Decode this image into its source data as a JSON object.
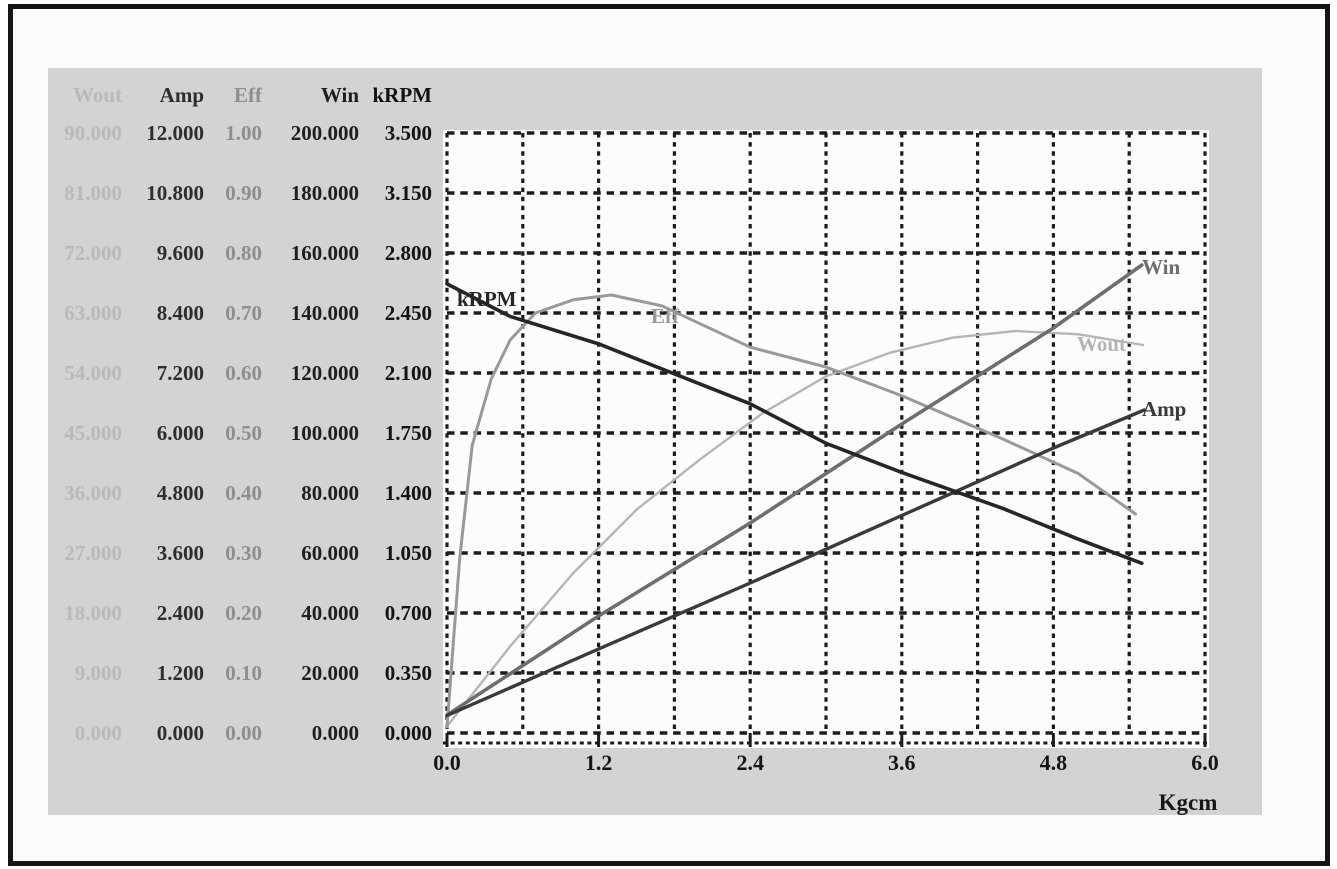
{
  "figure": {
    "border_color": "#151515",
    "panel_bg": "#d3d3d3",
    "plot_bg": "#fcfcfc",
    "grid_color": "#1c1c1c"
  },
  "table": {
    "columns": [
      {
        "header": "Wout",
        "color": "#b9b9b9"
      },
      {
        "header": "Amp",
        "color": "#2e2e2e"
      },
      {
        "header": "Eff",
        "color": "#8e8e8e"
      },
      {
        "header": "Win",
        "color": "#1f1f1f"
      },
      {
        "header": "kRPM",
        "color": "#121212"
      }
    ],
    "rows": [
      [
        "90.000",
        "12.000",
        "1.00",
        "200.000",
        "3.500"
      ],
      [
        "81.000",
        "10.800",
        "0.90",
        "180.000",
        "3.150"
      ],
      [
        "72.000",
        "9.600",
        "0.80",
        "160.000",
        "2.800"
      ],
      [
        "63.000",
        "8.400",
        "0.70",
        "140.000",
        "2.450"
      ],
      [
        "54.000",
        "7.200",
        "0.60",
        "120.000",
        "2.100"
      ],
      [
        "45.000",
        "6.000",
        "0.50",
        "100.000",
        "1.750"
      ],
      [
        "36.000",
        "4.800",
        "0.40",
        "80.000",
        "1.400"
      ],
      [
        "27.000",
        "3.600",
        "0.30",
        "60.000",
        "1.050"
      ],
      [
        "18.000",
        "2.400",
        "0.20",
        "40.000",
        "0.700"
      ],
      [
        "9.000",
        "1.200",
        "0.10",
        "20.000",
        "0.350"
      ],
      [
        "0.000",
        "0.000",
        "0.00",
        "0.000",
        "0.000"
      ]
    ]
  },
  "chart_data": {
    "type": "line",
    "title": "",
    "xlabel": "Kgcm",
    "x_max": 6.0,
    "x_ticks": [
      "0.0",
      "1.2",
      "2.4",
      "3.6",
      "4.8",
      "6.0"
    ],
    "grid": {
      "x_divisions": 10,
      "y_divisions": 10,
      "style": "dashed"
    },
    "axes_note": "Each series is read against its own left-table scale; 10 vertical divisions span 0 to axis_max.",
    "series": [
      {
        "name": "Wout",
        "axis_max": 90,
        "color": "#b5b5b5",
        "width": 2.4,
        "points": [
          [
            0,
            1
          ],
          [
            0.5,
            13
          ],
          [
            1.0,
            24
          ],
          [
            1.5,
            33.5
          ],
          [
            2.0,
            41
          ],
          [
            2.5,
            48
          ],
          [
            3.0,
            53.5
          ],
          [
            3.5,
            57
          ],
          [
            4.0,
            59.3
          ],
          [
            4.5,
            60.3
          ],
          [
            5.0,
            59.8
          ],
          [
            5.51,
            58.2
          ]
        ],
        "label": {
          "text": "Wout",
          "x": 634,
          "y": 203
        }
      },
      {
        "name": "Eff",
        "axis_max": 1.0,
        "color": "#999999",
        "width": 3.0,
        "points": [
          [
            0,
            0.01
          ],
          [
            0.1,
            0.29
          ],
          [
            0.2,
            0.48
          ],
          [
            0.35,
            0.59
          ],
          [
            0.5,
            0.655
          ],
          [
            0.7,
            0.7
          ],
          [
            1.0,
            0.722
          ],
          [
            1.3,
            0.73
          ],
          [
            1.7,
            0.712
          ],
          [
            2.4,
            0.643
          ],
          [
            3.0,
            0.61
          ],
          [
            3.6,
            0.562
          ],
          [
            4.4,
            0.49
          ],
          [
            5.0,
            0.432
          ],
          [
            5.45,
            0.365
          ]
        ],
        "label": {
          "text": "Eff",
          "x": 208,
          "y": 175
        }
      },
      {
        "name": "Win",
        "axis_max": 200,
        "color": "#6e6e6e",
        "width": 3.6,
        "points": [
          [
            0,
            6
          ],
          [
            1.2,
            39
          ],
          [
            2.4,
            70
          ],
          [
            3.6,
            103
          ],
          [
            4.8,
            135
          ],
          [
            5.5,
            156
          ]
        ],
        "label": {
          "text": "Win",
          "x": 699,
          "y": 126
        }
      },
      {
        "name": "Amp",
        "axis_max": 12,
        "color": "#3a3a3a",
        "width": 3.4,
        "points": [
          [
            0,
            0.35
          ],
          [
            1.2,
            1.68
          ],
          [
            2.4,
            3.0
          ],
          [
            3.6,
            4.35
          ],
          [
            4.8,
            5.7
          ],
          [
            5.52,
            6.46
          ]
        ],
        "label": {
          "text": "Amp",
          "x": 699,
          "y": 268
        }
      },
      {
        "name": "kRPM",
        "axis_max": 3.5,
        "color": "#262626",
        "width": 3.6,
        "points": [
          [
            0,
            2.62
          ],
          [
            0.5,
            2.43
          ],
          [
            1.2,
            2.27
          ],
          [
            2.4,
            1.92
          ],
          [
            3.0,
            1.69
          ],
          [
            3.6,
            1.52
          ],
          [
            4.4,
            1.31
          ],
          [
            5.0,
            1.13
          ],
          [
            5.5,
            0.99
          ]
        ],
        "label": {
          "text": "kRPM",
          "x": 14,
          "y": 158
        }
      }
    ]
  }
}
